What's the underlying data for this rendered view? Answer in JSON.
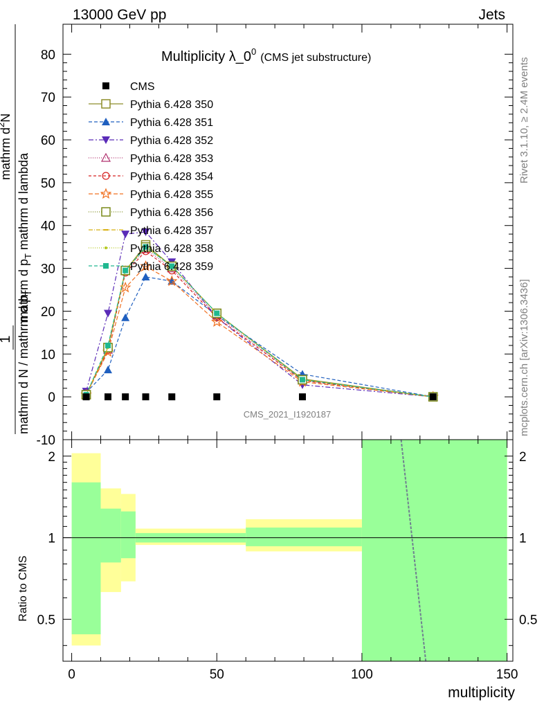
{
  "header": {
    "left": "13000 GeV pp",
    "right": "Jets"
  },
  "side_labels": {
    "rivet": "Rivet 3.1.10, ≥ 2.4M events",
    "mcplots": "mcplots.cern.ch [arXiv:1306.3436]"
  },
  "chart_data": [
    {
      "type": "line",
      "title_main": "Multiplicity λ_0",
      "title_sup": "0",
      "title_note": "(CMS jet substructure)",
      "watermark": "CMS_2021_I1920187",
      "ylabel_num": "mathrm d",
      "ylabel_num_sup": "2",
      "ylabel_num_tail": "N",
      "ylabel_den": "mathrm d p",
      "ylabel_den_sub": "T",
      "ylabel_den_tail": " mathrm d lambda",
      "ylabel_pre": "1",
      "ylabel_bottom": "mathrm d N / mathrm d p",
      "ylabel_bottom_sub": "T",
      "xlim": [
        -3,
        152
      ],
      "ylim": [
        -10,
        87
      ],
      "yticks": [
        -10,
        0,
        10,
        20,
        30,
        40,
        50,
        60,
        70,
        80
      ],
      "xticks": [
        0,
        50,
        100,
        150
      ],
      "x": [
        5,
        12.5,
        18.5,
        25.5,
        34.5,
        50,
        79.5,
        124.5
      ],
      "data": {
        "name": "CMS",
        "values": [
          0,
          0,
          0,
          0,
          0,
          0,
          0,
          0
        ],
        "color": "#000000"
      },
      "series": [
        {
          "name": "Pythia 6.428 350",
          "marker": "square-open",
          "dash": "",
          "color": "#8e8e2a",
          "values": [
            0.5,
            11.5,
            29.5,
            35.5,
            30.5,
            19.5,
            4.2,
            0
          ]
        },
        {
          "name": "Pythia 6.428 351",
          "marker": "triangle-up",
          "dash": "5,3",
          "color": "#1f5fbf",
          "values": [
            1.0,
            6.3,
            18.5,
            28.0,
            27.0,
            19.0,
            5.3,
            0
          ]
        },
        {
          "name": "Pythia 6.428 352",
          "marker": "triangle-down",
          "dash": "7,3,2,3",
          "color": "#5a2bb8",
          "values": [
            1.3,
            19.5,
            38.0,
            38.5,
            31.5,
            18.5,
            2.8,
            0
          ]
        },
        {
          "name": "Pythia 6.428 353",
          "marker": "triangle-up-open",
          "dash": "1,2",
          "color": "#b0306e",
          "values": [
            0.5,
            11.0,
            29.5,
            34.5,
            30.0,
            19.0,
            3.8,
            0
          ]
        },
        {
          "name": "Pythia 6.428 354",
          "marker": "circle-open",
          "dash": "4,3",
          "color": "#d62020",
          "values": [
            0.5,
            11.0,
            29.0,
            34.0,
            29.5,
            18.5,
            3.8,
            0
          ]
        },
        {
          "name": "Pythia 6.428 355",
          "marker": "star-open",
          "dash": "6,3",
          "color": "#f07020",
          "values": [
            0.5,
            10.5,
            25.5,
            30.5,
            27.0,
            17.5,
            3.5,
            0
          ]
        },
        {
          "name": "Pythia 6.428 356",
          "marker": "square-open",
          "dash": "1,2",
          "color": "#7a8a1a",
          "values": [
            0.5,
            11.5,
            29.5,
            35.0,
            30.5,
            19.5,
            4.0,
            0
          ]
        },
        {
          "name": "Pythia 6.428 357",
          "marker": "dot-line",
          "dash": "6,2,1,2",
          "color": "#d8b010",
          "values": [
            0.5,
            11.5,
            29.5,
            35.0,
            30.5,
            19.5,
            4.0,
            0
          ]
        },
        {
          "name": "Pythia 6.428 358",
          "marker": "dot",
          "dash": "1,2",
          "color": "#b4c81e",
          "values": [
            0.5,
            11.5,
            29.5,
            35.0,
            30.5,
            19.5,
            4.0,
            0
          ]
        },
        {
          "name": "Pythia 6.428 359",
          "marker": "square-fill",
          "dash": "5,3",
          "color": "#20b890",
          "values": [
            0.5,
            12.0,
            29.5,
            35.0,
            30.5,
            19.5,
            4.0,
            0
          ]
        }
      ]
    },
    {
      "type": "area",
      "ylabel": "Ratio to CMS",
      "xlabel": "multiplicity",
      "ylim": [
        0.35,
        2.3
      ],
      "scale": "log",
      "yticks": [
        0.5,
        1,
        2
      ],
      "ytick_labels": [
        "0.5",
        "1",
        "2"
      ],
      "band_color_outer": "#ffff99",
      "band_color_inner": "#99ff99",
      "bins": [
        {
          "lo": 0,
          "hi": 10,
          "outer": [
            0.4,
            2.05
          ],
          "inner": [
            0.44,
            1.6
          ]
        },
        {
          "lo": 10,
          "hi": 17,
          "outer": [
            0.63,
            1.52
          ],
          "inner": [
            0.81,
            1.28
          ]
        },
        {
          "lo": 17,
          "hi": 22,
          "outer": [
            0.69,
            1.45
          ],
          "inner": [
            0.84,
            1.25
          ]
        },
        {
          "lo": 22,
          "hi": 60,
          "outer": [
            0.94,
            1.08
          ],
          "inner": [
            0.96,
            1.04
          ]
        },
        {
          "lo": 60,
          "hi": 100,
          "outer": [
            0.89,
            1.17
          ],
          "inner": [
            0.93,
            1.09
          ]
        },
        {
          "lo": 100,
          "hi": 150,
          "outer": [
            0.35,
            2.3
          ],
          "inner": [
            0.35,
            2.3
          ]
        }
      ],
      "ratio_line": {
        "x": [
          113.5,
          122
        ],
        "y": [
          2.3,
          0.35
        ],
        "color": "#708090"
      }
    }
  ]
}
